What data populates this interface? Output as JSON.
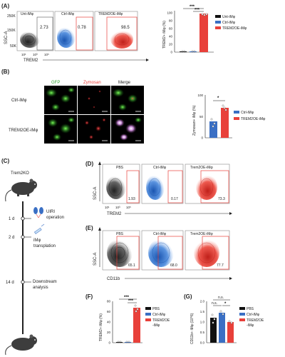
{
  "figure": {
    "panels": {
      "A": {
        "label": "(A)",
        "flow": {
          "ytick_top": "250K",
          "ytick_mid": "150K",
          "ytick_bot": "50K",
          "ylabel": "SSC-A",
          "xlabel": "TREM2",
          "xticks": [
            "10¹",
            "10³",
            "10⁵"
          ],
          "plots": [
            {
              "title": "Unt-iMφ",
              "value": "2.73",
              "color": "#7a7a7a"
            },
            {
              "title": "Ctrl-iMφ",
              "value": "0.78",
              "color": "#3a7bd5"
            },
            {
              "title": "TREM2OE-iMφ",
              "value": "98.5",
              "color": "#e8403a"
            }
          ]
        },
        "bar_ylabel": "TREM2+ iMφ (%)",
        "bar_yticks": [
          "0",
          "20",
          "40",
          "60",
          "80",
          "100"
        ],
        "sig": [
          "***",
          "***"
        ],
        "legend": [
          "Unt-iMφ",
          "Ctrl-iMφ",
          "TREM2OE-iMφ"
        ]
      },
      "B": {
        "label": "(B)",
        "headers": [
          "GFP",
          "Zymosan",
          "Merge"
        ],
        "rows": [
          "Ctrl-iMφ",
          "TREM2OE-iMφ"
        ],
        "bar_ylabel": "Zymosan+ iMφ (%)",
        "bar_yticks": [
          "0",
          "50",
          "100"
        ],
        "sig": "*",
        "legend": [
          "Ctrl-iMφ",
          "TREM2OE-iMφ"
        ]
      },
      "C": {
        "label": "(C)",
        "mouse": "Trem2KO",
        "steps": [
          {
            "day": "1 d",
            "text": "UIRI",
            "text2": "operation"
          },
          {
            "day": "2 d",
            "text": "iMφ",
            "text2": "transplation"
          },
          {
            "day": "14 d",
            "text": "Downstream",
            "text2": "analysis"
          }
        ]
      },
      "D": {
        "label": "(D)",
        "ylabel": "SSC-A",
        "xlabel": "TREM2",
        "xticks": [
          "10¹",
          "10³",
          "10⁵"
        ],
        "plots": [
          {
            "title": "PBS",
            "value": "1.93"
          },
          {
            "title": "Ctrl-iMφ",
            "value": "0.17"
          },
          {
            "title": "Trem2OE-iMφ",
            "value": "73.3"
          }
        ]
      },
      "E": {
        "label": "(E)",
        "ylabel": "SSC-A",
        "xlabel": "CD11b",
        "plots": [
          {
            "title": "PBS",
            "value": "65.1"
          },
          {
            "title": "Ctrl-iMφ",
            "value": "68.0"
          },
          {
            "title": "Trem2OE-iMφ",
            "value": "77.7"
          }
        ]
      },
      "F": {
        "label": "(F)",
        "ylabel": "TREM2+ iMφ (%)",
        "yticks": [
          "0",
          "20",
          "40",
          "60",
          "80"
        ],
        "sig": [
          "***",
          "***"
        ],
        "legend": [
          "PBS",
          "Ctrl-iMφ",
          "TREM2OE",
          "-iMφ"
        ]
      },
      "G": {
        "label": "(G)",
        "ylabel": "CD11b+ iMφ (10^6)",
        "yticks": [
          "0.0",
          "0.5",
          "1.0",
          "1.5",
          "2.0"
        ],
        "sig": [
          "n.s.",
          "n.s.",
          "*"
        ],
        "legend": [
          "PBS",
          "Ctrl-iMφ",
          "TREM2OE",
          "-iMφ"
        ]
      }
    }
  },
  "chart_data": [
    {
      "type": "bar",
      "categories": [
        "Unt-iMφ",
        "Ctrl-iMφ",
        "TREM2OE-iMφ"
      ],
      "values": [
        0.5,
        0.5,
        97
      ],
      "ylabel": "TREM2+ iMφ (%)",
      "ylim": [
        0,
        100
      ]
    },
    {
      "type": "bar",
      "categories": [
        "Ctrl-iMφ",
        "TREM2OE-iMφ"
      ],
      "values": [
        38,
        70
      ],
      "ylabel": "Zymosan+ iMφ (%)",
      "ylim": [
        0,
        100
      ]
    },
    {
      "type": "bar",
      "categories": [
        "PBS",
        "Ctrl-iMφ",
        "TREM2OE-iMφ"
      ],
      "values": [
        0.5,
        0.5,
        67
      ],
      "ylabel": "TREM2+ iMφ (%)",
      "ylim": [
        0,
        80
      ]
    },
    {
      "type": "bar",
      "categories": [
        "PBS",
        "Ctrl-iMφ",
        "TREM2OE-iMφ"
      ],
      "values": [
        1.2,
        1.45,
        1.0
      ],
      "ylabel": "CD11b+ iMφ (10^6)",
      "ylim": [
        0,
        2
      ]
    }
  ]
}
